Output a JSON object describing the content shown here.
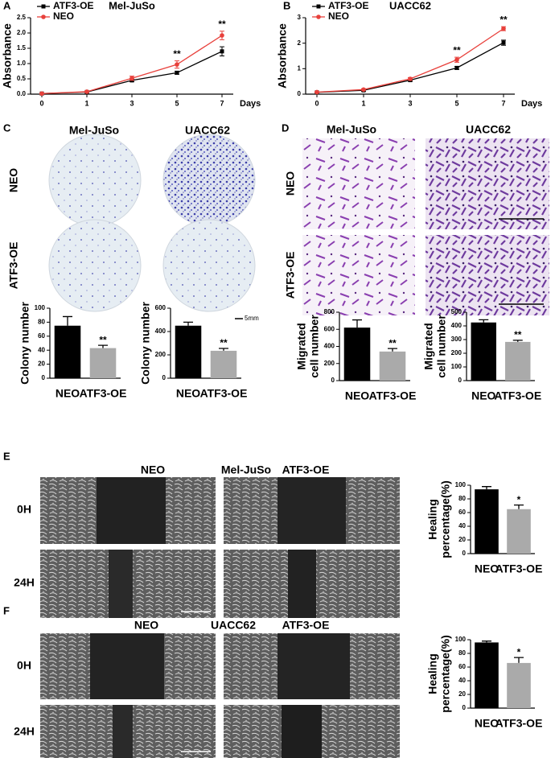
{
  "panels": {
    "letters": [
      "A",
      "B",
      "C",
      "D",
      "E",
      "F"
    ],
    "C": {
      "columns": [
        "Mel-JuSo",
        "UACC62"
      ],
      "rows": [
        "NEO",
        "ATF3-OE"
      ],
      "scale": "5mm"
    },
    "D": {
      "columns": [
        "Mel-JuSo",
        "UACC62"
      ],
      "rows": [
        "NEO",
        "ATF3-OE"
      ]
    },
    "E": {
      "columns": [
        "NEO",
        "Mel-JuSo",
        "ATF3-OE"
      ],
      "rows": [
        "0H",
        "24H"
      ]
    },
    "F": {
      "columns": [
        "NEO",
        "UACC62",
        "ATF3-OE"
      ],
      "rows": [
        "0H",
        "24H"
      ]
    }
  },
  "chart_data": [
    {
      "type": "line",
      "title": "Mel-JuSo",
      "xlabel": "Days",
      "ylabel": [
        "Absorbance"
      ],
      "categories": [
        "0",
        "1",
        "3",
        "5",
        "7"
      ],
      "ylim": [
        0,
        2.5
      ],
      "yticks": [
        {
          "value": 0,
          "label": "0.0"
        },
        0.5,
        {
          "value": 1,
          "label": "1.0"
        },
        1.5,
        {
          "value": 2,
          "label": "2.0"
        },
        2.5
      ],
      "legend": "upper left",
      "series": [
        {
          "name": "ATF3-OE",
          "color": "#000000",
          "marker": "square",
          "values": [
            0.02,
            0.07,
            0.45,
            0.7,
            1.4
          ],
          "errors": [
            0.01,
            0.02,
            0.04,
            0.05,
            0.15
          ]
        },
        {
          "name": "NEO",
          "color": "#e8413c",
          "marker": "circle",
          "values": [
            0.02,
            0.08,
            0.52,
            0.97,
            1.92
          ],
          "errors": [
            0.01,
            0.02,
            0.07,
            0.12,
            0.14
          ]
        }
      ],
      "annotations": [
        {
          "x": "5",
          "text": "**"
        },
        {
          "x": "7",
          "text": "**"
        }
      ]
    },
    {
      "type": "line",
      "title": "UACC62",
      "xlabel": "Days",
      "ylabel": [
        "Absorbance"
      ],
      "categories": [
        "0",
        "1",
        "3",
        "5",
        "7"
      ],
      "ylim": [
        0,
        3
      ],
      "yticks": [
        0,
        1,
        2,
        3
      ],
      "legend": "upper left",
      "series": [
        {
          "name": "ATF3-OE",
          "color": "#000000",
          "marker": "square",
          "values": [
            0.07,
            0.15,
            0.55,
            1.03,
            2.02
          ],
          "errors": [
            0.02,
            0.03,
            0.04,
            0.06,
            0.1
          ]
        },
        {
          "name": "NEO",
          "color": "#e8413c",
          "marker": "circle",
          "values": [
            0.08,
            0.18,
            0.6,
            1.35,
            2.57
          ],
          "errors": [
            0.02,
            0.03,
            0.05,
            0.1,
            0.08
          ]
        }
      ],
      "annotations": [
        {
          "x": "5",
          "text": "**"
        },
        {
          "x": "7",
          "text": "**"
        }
      ]
    },
    {
      "type": "bar",
      "ylabel": [
        "Colony number"
      ],
      "categories": [
        "NEO",
        "ATF3-OE"
      ],
      "values": [
        75,
        43
      ],
      "errors": [
        13,
        4
      ],
      "colors": [
        "#000000",
        "#aaaaaa"
      ],
      "ylim": [
        0,
        100
      ],
      "yticks": [
        0,
        20,
        40,
        60,
        80,
        100
      ],
      "annotations": [
        {
          "x": "ATF3-OE",
          "text": "**"
        }
      ]
    },
    {
      "type": "bar",
      "ylabel": [
        "Colony number"
      ],
      "categories": [
        "NEO",
        "ATF3-OE"
      ],
      "values": [
        450,
        235
      ],
      "errors": [
        30,
        20
      ],
      "colors": [
        "#000000",
        "#aaaaaa"
      ],
      "ylim": [
        0,
        600
      ],
      "yticks": [
        0,
        200,
        400,
        600
      ],
      "annotations": [
        {
          "x": "ATF3-OE",
          "text": "**"
        }
      ]
    },
    {
      "type": "bar",
      "ylabel": [
        "Migrated",
        "cell number"
      ],
      "categories": [
        "NEO",
        "ATF3-OE"
      ],
      "values": [
        620,
        340
      ],
      "errors": [
        90,
        35
      ],
      "colors": [
        "#000000",
        "#aaaaaa"
      ],
      "ylim": [
        0,
        800
      ],
      "yticks": [
        0,
        200,
        400,
        600,
        800
      ],
      "annotations": [
        {
          "x": "ATF3-OE",
          "text": "**"
        }
      ]
    },
    {
      "type": "bar",
      "ylabel": [
        "Migrated",
        "cell number"
      ],
      "categories": [
        "NEO",
        "ATF3-OE"
      ],
      "values": [
        425,
        283
      ],
      "errors": [
        20,
        12
      ],
      "colors": [
        "#000000",
        "#aaaaaa"
      ],
      "ylim": [
        0,
        500
      ],
      "yticks": [
        0,
        100,
        200,
        300,
        400,
        500
      ],
      "annotations": [
        {
          "x": "ATF3-OE",
          "text": "**"
        }
      ]
    },
    {
      "type": "bar",
      "ylabel": [
        "Healing",
        "percentage(%)"
      ],
      "categories": [
        "NEO",
        "ATF3-OE"
      ],
      "values": [
        94,
        65
      ],
      "errors": [
        4,
        6
      ],
      "colors": [
        "#000000",
        "#aaaaaa"
      ],
      "ylim": [
        0,
        100
      ],
      "yticks": [
        0,
        20,
        40,
        60,
        80,
        100
      ],
      "annotations": [
        {
          "x": "ATF3-OE",
          "text": "*"
        }
      ]
    },
    {
      "type": "bar",
      "ylabel": [
        "Healing",
        "percentage(%)"
      ],
      "categories": [
        "NEO",
        "ATF3-OE"
      ],
      "values": [
        96,
        66
      ],
      "errors": [
        2,
        8
      ],
      "colors": [
        "#000000",
        "#aaaaaa"
      ],
      "ylim": [
        0,
        100
      ],
      "yticks": [
        0,
        20,
        40,
        60,
        80,
        100
      ],
      "annotations": [
        {
          "x": "ATF3-OE",
          "text": "*"
        }
      ]
    }
  ]
}
